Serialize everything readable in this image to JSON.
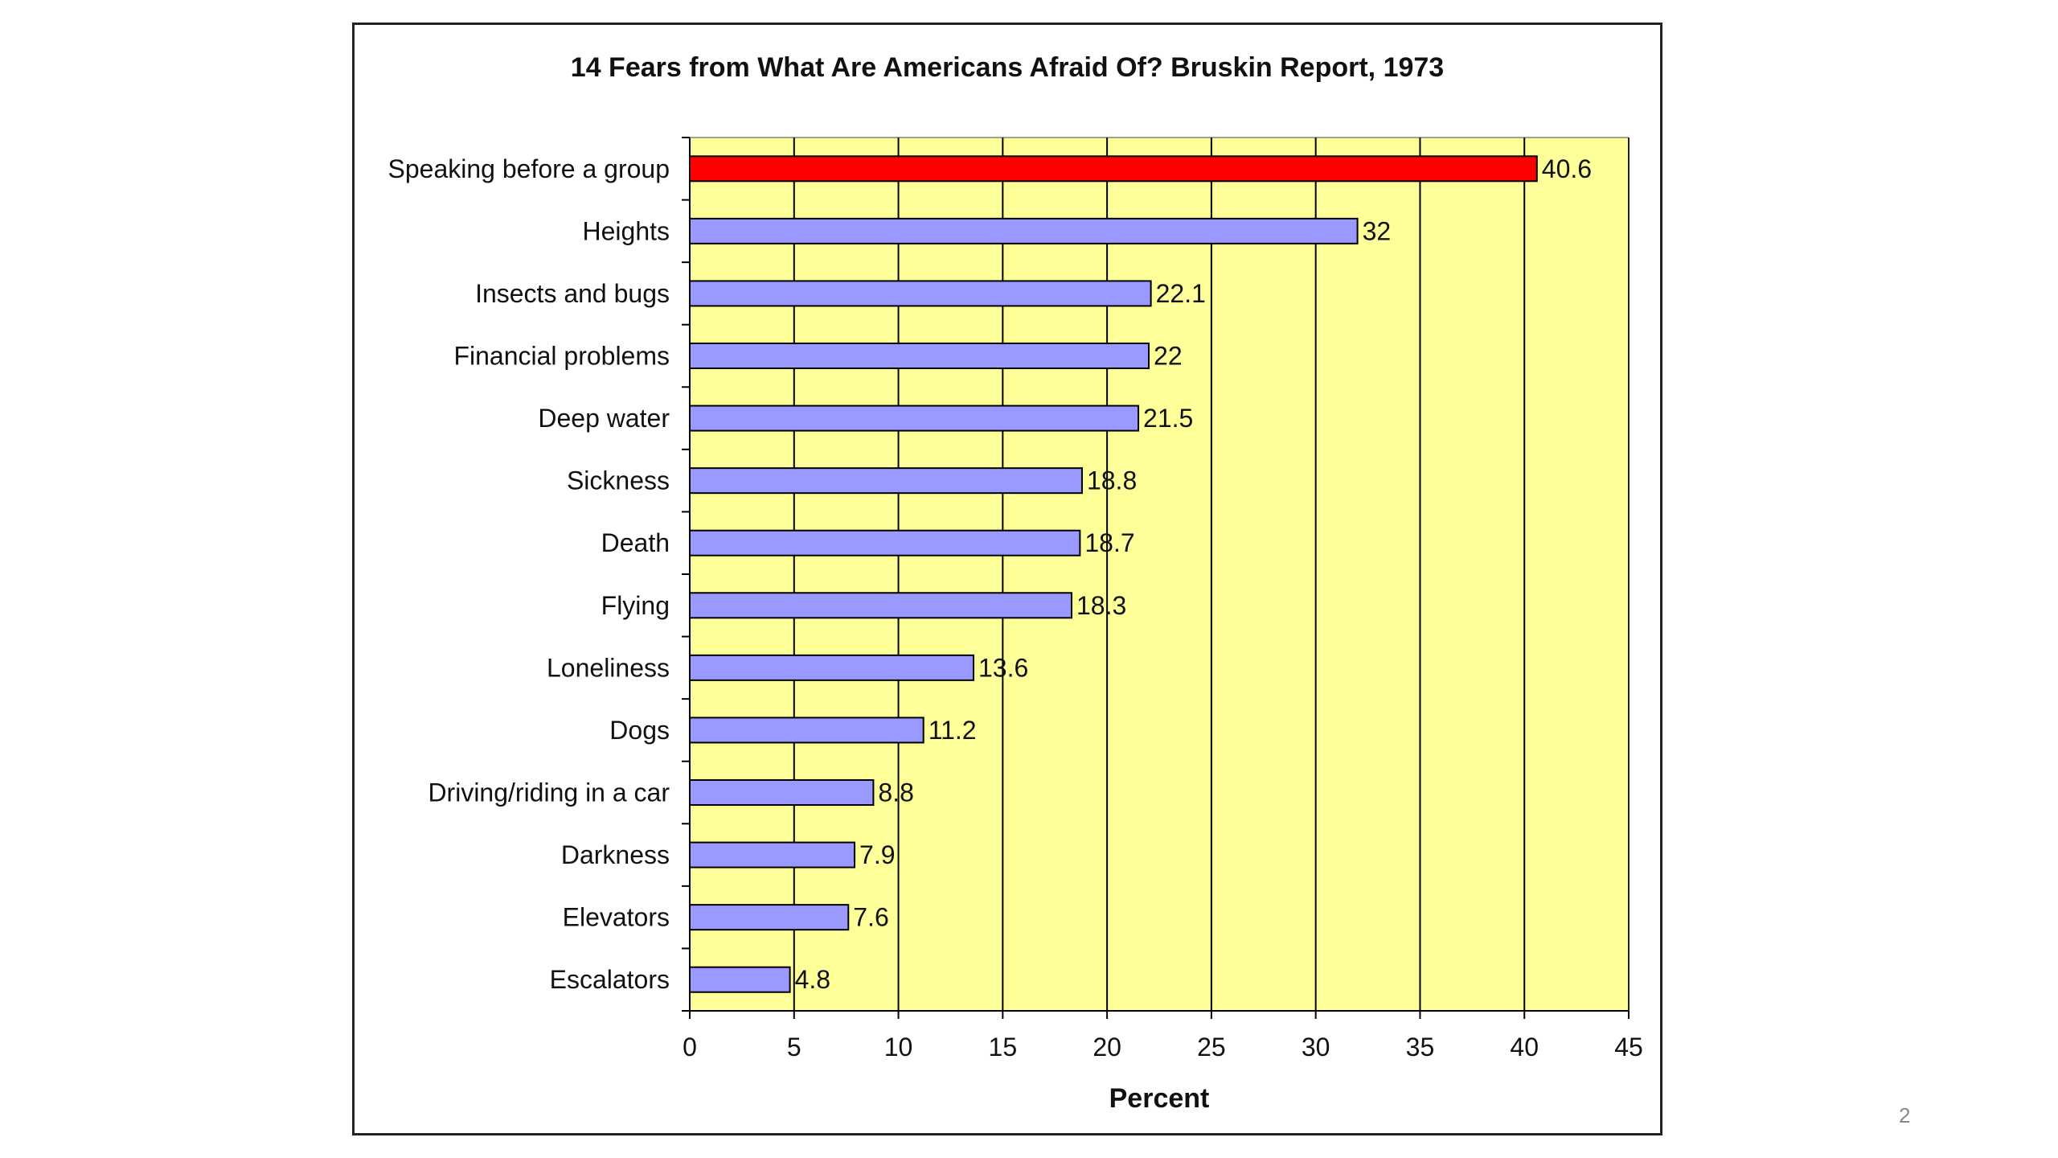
{
  "slide": {
    "page_number": "2"
  },
  "chart_data": {
    "type": "bar",
    "orientation": "horizontal",
    "title": "14 Fears from What Are Americans Afraid Of? Bruskin Report, 1973",
    "xlabel": "Percent",
    "ylabel": "",
    "xlim": [
      0,
      45
    ],
    "xticks": [
      0,
      5,
      10,
      15,
      20,
      25,
      30,
      35,
      40,
      45
    ],
    "grid": true,
    "legend": "none",
    "categories": [
      "Speaking before a group",
      "Heights",
      "Insects and bugs",
      "Financial problems",
      "Deep water",
      "Sickness",
      "Death",
      "Flying",
      "Loneliness",
      "Dogs",
      "Driving/riding in a car",
      "Darkness",
      "Elevators",
      "Escalators"
    ],
    "values": [
      40.6,
      32,
      22.1,
      22,
      21.5,
      18.8,
      18.7,
      18.3,
      13.6,
      11.2,
      8.8,
      7.9,
      7.6,
      4.8
    ],
    "value_labels": [
      "40.6",
      "32",
      "22.1",
      "22",
      "21.5",
      "18.8",
      "18.7",
      "18.3",
      "13.6",
      "11.2",
      "8.8",
      "7.9",
      "7.6",
      "4.8"
    ],
    "highlight_index": 0,
    "colors": {
      "plot_background": "#ffff99",
      "bar": "#9999ff",
      "highlight_bar": "#ff0000",
      "bar_outline": "#000000",
      "gridline": "#000000"
    }
  }
}
